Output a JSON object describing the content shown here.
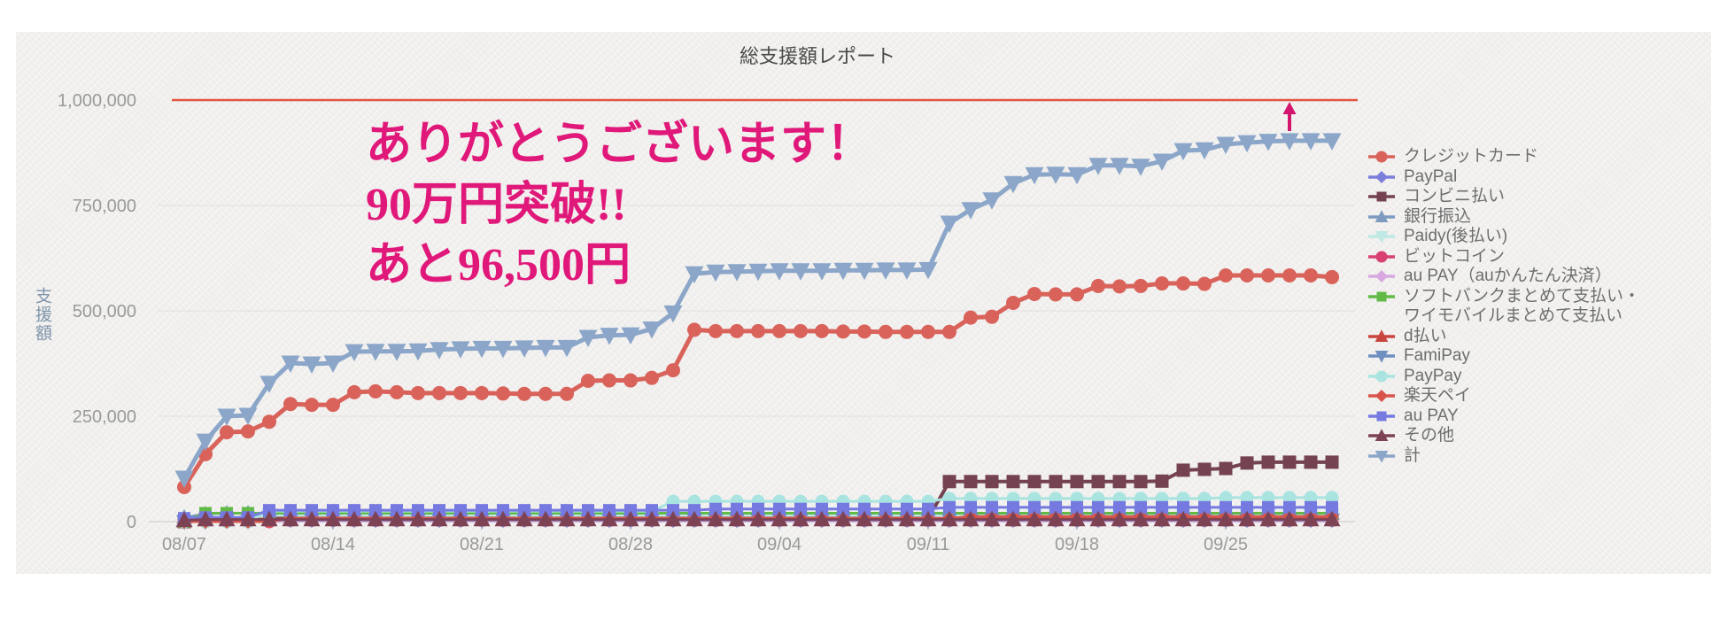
{
  "annotation": {
    "lines": [
      "ありがとうございます！",
      "90万円突破!!",
      "あと96,500円"
    ],
    "color": "#e0187a"
  },
  "chart_data": {
    "type": "line",
    "title": "総支援額レポート",
    "ylabel": "支援額",
    "xlabel": "",
    "ylim": [
      0,
      1050000
    ],
    "grid": true,
    "legend_position": "right",
    "y_ticks": [
      0,
      250000,
      500000,
      750000,
      1000000
    ],
    "x": [
      "08/07",
      "08/08",
      "08/09",
      "08/10",
      "08/11",
      "08/12",
      "08/13",
      "08/14",
      "08/15",
      "08/16",
      "08/17",
      "08/18",
      "08/19",
      "08/20",
      "08/21",
      "08/22",
      "08/23",
      "08/24",
      "08/25",
      "08/26",
      "08/27",
      "08/28",
      "08/29",
      "08/30",
      "08/31",
      "09/01",
      "09/02",
      "09/03",
      "09/04",
      "09/05",
      "09/06",
      "09/07",
      "09/08",
      "09/09",
      "09/10",
      "09/11",
      "09/12",
      "09/13",
      "09/14",
      "09/15",
      "09/16",
      "09/17",
      "09/18",
      "09/19",
      "09/20",
      "09/21",
      "09/22",
      "09/23",
      "09/24",
      "09/25",
      "09/26",
      "09/27",
      "09/28",
      "09/29",
      "09/30"
    ],
    "x_tick_indices": [
      0,
      7,
      14,
      21,
      28,
      35,
      42,
      49
    ],
    "goal_line": {
      "value": 1000000,
      "color": "#e25440"
    },
    "arrow_annotation": {
      "x_index": 52,
      "color": "#d4156e"
    },
    "series": [
      {
        "key": "credit-card",
        "name": "クレジットカード",
        "color": "#d9625a",
        "marker": "circle",
        "lw": 5,
        "ms": 8,
        "values": [
          82000,
          160000,
          212000,
          214000,
          237000,
          279000,
          277000,
          277000,
          307000,
          309000,
          307000,
          305000,
          305000,
          305000,
          305000,
          304000,
          303000,
          303000,
          303000,
          334000,
          335000,
          335000,
          341000,
          359000,
          455000,
          452000,
          452000,
          452000,
          452000,
          452000,
          452000,
          451000,
          451000,
          450000,
          450000,
          450000,
          450000,
          484000,
          486000,
          519000,
          540000,
          539000,
          539000,
          559000,
          558000,
          559000,
          565000,
          565000,
          564000,
          584000,
          584000,
          584000,
          584000,
          584000,
          580000
        ]
      },
      {
        "key": "paypal",
        "name": "PayPal",
        "color": "#7b7ddb",
        "marker": "diamond",
        "lw": 3,
        "ms": 7.5,
        "values": [
          4000,
          8000,
          8000,
          8000,
          8000,
          8000,
          8000,
          8000,
          8000,
          8000,
          8000,
          8000,
          8000,
          8000,
          8000,
          8000,
          8000,
          8000,
          8000,
          8000,
          8000,
          8000,
          8000,
          8000,
          8000,
          8000,
          8000,
          8000,
          8000,
          8000,
          8000,
          8000,
          8000,
          8000,
          8000,
          8000,
          8000,
          8000,
          8000,
          8000,
          8000,
          8000,
          8000,
          8000,
          8000,
          8000,
          8000,
          8000,
          8000,
          8000,
          8000,
          8000,
          8000,
          8000,
          8000
        ]
      },
      {
        "key": "konbini",
        "name": "コンビニ払い",
        "color": "#744250",
        "marker": "square",
        "lw": 4,
        "ms": 7.5,
        "values": [
          0,
          5000,
          8000,
          8000,
          8000,
          8000,
          8000,
          8000,
          8000,
          8000,
          8000,
          8000,
          8000,
          8000,
          8000,
          8000,
          8000,
          8000,
          8000,
          8000,
          8000,
          8000,
          8000,
          8000,
          8000,
          8000,
          8000,
          8000,
          8000,
          8000,
          8000,
          8000,
          8000,
          8000,
          8000,
          8000,
          95000,
          95000,
          95000,
          95000,
          95000,
          95000,
          95000,
          95000,
          95000,
          95000,
          96000,
          122000,
          124000,
          126000,
          139000,
          141000,
          141000,
          141000,
          141000
        ]
      },
      {
        "key": "bank-transfer",
        "name": "銀行振込",
        "color": "#7e9ac0",
        "marker": "triangle-up",
        "lw": 3,
        "ms": 8.5,
        "values": [
          10000,
          18000,
          20000,
          20000,
          20000,
          20000,
          20000,
          20000,
          20000,
          20000,
          20000,
          20000,
          20000,
          20000,
          20000,
          20000,
          20000,
          20000,
          20000,
          20000,
          20000,
          20000,
          20000,
          20000,
          20000,
          20000,
          20000,
          20000,
          20000,
          20000,
          20000,
          20000,
          20000,
          20000,
          20000,
          20000,
          20000,
          20000,
          20000,
          20000,
          20000,
          20000,
          20000,
          20000,
          20000,
          20000,
          20000,
          20000,
          20000,
          20000,
          20000,
          20000,
          20000,
          20000,
          20000
        ]
      },
      {
        "key": "paidy",
        "name": "Paidy(後払い)",
        "color": "#bfe9e5",
        "marker": "triangle-down",
        "lw": 3,
        "ms": 8.5,
        "values": [
          0,
          0,
          0,
          0,
          15000,
          15000,
          15000,
          15000,
          15000,
          15000,
          15000,
          15000,
          15000,
          15000,
          15000,
          15000,
          15000,
          15000,
          15000,
          15000,
          15000,
          15000,
          15000,
          15000,
          15000,
          15000,
          15000,
          15000,
          15000,
          15000,
          15000,
          15000,
          15000,
          15000,
          15000,
          15000,
          15000,
          15000,
          15000,
          15000,
          15000,
          15000,
          15000,
          15000,
          15000,
          15000,
          15000,
          15000,
          15000,
          15000,
          15000,
          15000,
          15000,
          15000,
          15000
        ]
      },
      {
        "key": "bitcoin",
        "name": "ビットコイン",
        "color": "#d84070",
        "marker": "circle",
        "lw": 3,
        "ms": 7.5,
        "values": [
          0,
          0,
          0,
          0,
          0,
          3000,
          3000,
          3000,
          3000,
          3000,
          3000,
          3000,
          3000,
          3000,
          3000,
          3000,
          3000,
          3000,
          3000,
          3000,
          3000,
          3000,
          3000,
          3000,
          3000,
          3000,
          3000,
          3000,
          3000,
          3000,
          3000,
          3000,
          3000,
          3000,
          3000,
          3000,
          3000,
          3000,
          3000,
          3000,
          3000,
          3000,
          3000,
          3000,
          3000,
          3000,
          3000,
          3000,
          3000,
          3000,
          3000,
          3000,
          3000,
          3000,
          3000
        ]
      },
      {
        "key": "au-pay-kantan",
        "name": "au PAY（auかんたん決済）",
        "color": "#d8a8e0",
        "marker": "diamond",
        "lw": 3,
        "ms": 7.5,
        "values": [
          0,
          0,
          0,
          0,
          0,
          1000,
          1000,
          1000,
          1000,
          1000,
          1000,
          1000,
          1000,
          1000,
          1000,
          1000,
          1000,
          1000,
          1000,
          1000,
          1000,
          1000,
          1000,
          1000,
          1000,
          1000,
          1000,
          1000,
          1000,
          1000,
          1000,
          1000,
          1000,
          1000,
          1000,
          1000,
          1000,
          1000,
          1000,
          1000,
          1000,
          1000,
          1000,
          1000,
          1000,
          1000,
          1000,
          1000,
          1000,
          1000,
          1000,
          1000,
          1000,
          1000,
          1000
        ]
      },
      {
        "key": "softbank-ymobile",
        "name": "ソフトバンクまとめて支払い・\nワイモバイルまとめて支払い",
        "color": "#62ba46",
        "marker": "square",
        "lw": 3,
        "ms": 7,
        "values": [
          0,
          20000,
          20000,
          20000,
          20000,
          20000,
          20000,
          20000,
          20000,
          20000,
          20000,
          20000,
          20000,
          20000,
          20000,
          20000,
          20000,
          20000,
          20000,
          20000,
          20000,
          20000,
          20000,
          20000,
          20000,
          20000,
          20000,
          20000,
          20000,
          20000,
          20000,
          20000,
          20000,
          20000,
          20000,
          20000,
          20000,
          20000,
          20000,
          20000,
          20000,
          20000,
          20000,
          20000,
          20000,
          20000,
          20000,
          20000,
          20000,
          20000,
          20000,
          20000,
          20000,
          20000,
          20000
        ]
      },
      {
        "key": "d-barai",
        "name": "d払い",
        "color": "#c94540",
        "marker": "triangle-up",
        "lw": 3,
        "ms": 8.5,
        "values": [
          2000,
          6000,
          6000,
          6000,
          6000,
          6000,
          6000,
          6000,
          6000,
          6000,
          6000,
          6000,
          6000,
          6000,
          6000,
          6000,
          6000,
          6000,
          6000,
          6000,
          6000,
          6000,
          6000,
          6000,
          6000,
          6000,
          6000,
          6000,
          6000,
          6000,
          6000,
          6000,
          6000,
          6000,
          6000,
          6000,
          6000,
          6000,
          6000,
          6000,
          6000,
          6000,
          6000,
          6000,
          6000,
          6000,
          6000,
          6000,
          6000,
          6000,
          6000,
          6000,
          6000,
          6000,
          6000
        ]
      },
      {
        "key": "famipay",
        "name": "FamiPay",
        "color": "#6f8fc0",
        "marker": "triangle-down",
        "lw": 3,
        "ms": 8.5,
        "values": [
          0,
          0,
          4000,
          4000,
          4000,
          4000,
          4000,
          4000,
          4000,
          4000,
          4000,
          4000,
          4000,
          4000,
          4000,
          4000,
          4000,
          4000,
          4000,
          4000,
          4000,
          4000,
          4000,
          4000,
          4000,
          4000,
          4000,
          4000,
          4000,
          4000,
          4000,
          4000,
          4000,
          4000,
          4000,
          4000,
          4000,
          4000,
          4000,
          4000,
          4000,
          4000,
          4000,
          4000,
          4000,
          4000,
          4000,
          4000,
          4000,
          4000,
          4000,
          4000,
          4000,
          4000,
          4000
        ]
      },
      {
        "key": "paypay",
        "name": "PayPay",
        "color": "#a9e4e0",
        "marker": "circle",
        "lw": 3,
        "ms": 7.5,
        "values": [
          0,
          0,
          0,
          0,
          25000,
          25000,
          25000,
          25000,
          25000,
          25000,
          25000,
          25000,
          25000,
          25000,
          25000,
          25000,
          25000,
          25000,
          25000,
          25000,
          25000,
          25000,
          25000,
          48000,
          48000,
          48000,
          48000,
          48000,
          48000,
          48000,
          48000,
          48000,
          48000,
          48000,
          48000,
          48000,
          55000,
          55000,
          55000,
          55000,
          55000,
          55000,
          55000,
          55000,
          55000,
          55000,
          55000,
          55000,
          55000,
          57000,
          57000,
          57000,
          57000,
          57000,
          57000
        ]
      },
      {
        "key": "rakuten-pay",
        "name": "楽天ペイ",
        "color": "#d8544a",
        "marker": "diamond",
        "lw": 3,
        "ms": 8,
        "values": [
          0,
          0,
          0,
          0,
          0,
          8000,
          8000,
          8000,
          8000,
          8000,
          8000,
          8000,
          8000,
          8000,
          8000,
          8000,
          8000,
          8000,
          8000,
          8000,
          8000,
          8000,
          8000,
          8000,
          8000,
          8000,
          8000,
          8000,
          8000,
          8000,
          8000,
          8000,
          8000,
          8000,
          8000,
          8000,
          8000,
          12000,
          12000,
          12000,
          12000,
          12000,
          12000,
          12000,
          12000,
          12000,
          12000,
          12000,
          12000,
          12000,
          12000,
          12000,
          12000,
          12000,
          12000
        ]
      },
      {
        "key": "au-pay",
        "name": "au PAY",
        "color": "#7679e0",
        "marker": "square",
        "lw": 3,
        "ms": 7,
        "values": [
          8000,
          10000,
          10000,
          10000,
          27000,
          27000,
          27000,
          27000,
          27000,
          27000,
          27000,
          27000,
          27000,
          27000,
          27000,
          27000,
          27000,
          27000,
          27000,
          27000,
          27000,
          27000,
          27000,
          27000,
          27000,
          30000,
          30000,
          30000,
          30000,
          30000,
          30000,
          30000,
          30000,
          30000,
          30000,
          30000,
          34000,
          34000,
          34000,
          34000,
          34000,
          34000,
          34000,
          34000,
          34000,
          34000,
          34000,
          34000,
          34000,
          34000,
          34000,
          34000,
          34000,
          34000,
          34000
        ]
      },
      {
        "key": "sonota",
        "name": "その他",
        "color": "#7d4355",
        "marker": "triangle-up",
        "lw": 3,
        "ms": 9,
        "values": [
          3000,
          5000,
          5000,
          5000,
          5000,
          5000,
          5000,
          5000,
          5000,
          5000,
          5000,
          5000,
          5000,
          5000,
          5000,
          5000,
          5000,
          5000,
          5000,
          5000,
          5000,
          5000,
          5000,
          5000,
          5000,
          5000,
          5000,
          5000,
          5000,
          5000,
          5000,
          5000,
          5000,
          5000,
          5000,
          5000,
          5000,
          5000,
          5000,
          5000,
          5000,
          5000,
          5000,
          5000,
          5000,
          5000,
          5000,
          5000,
          5000,
          5000,
          5000,
          5000,
          5000,
          5000,
          5000
        ]
      },
      {
        "key": "total",
        "name": "計",
        "color": "#8ba6c9",
        "marker": "triangle-down",
        "lw": 5,
        "ms": 10,
        "values": [
          103000,
          191000,
          250000,
          252000,
          328000,
          376000,
          374000,
          376000,
          403000,
          404000,
          404000,
          405000,
          408000,
          410000,
          411000,
          411000,
          412000,
          413000,
          413000,
          437000,
          442000,
          443000,
          457000,
          495000,
          588000,
          592000,
          593000,
          594000,
          595000,
          595000,
          595000,
          596000,
          596000,
          597000,
          597000,
          598000,
          708000,
          740000,
          763000,
          802000,
          823000,
          824000,
          823000,
          845000,
          845000,
          843000,
          855000,
          880000,
          882000,
          895000,
          899000,
          902000,
          903500,
          903500,
          903500
        ]
      }
    ]
  }
}
